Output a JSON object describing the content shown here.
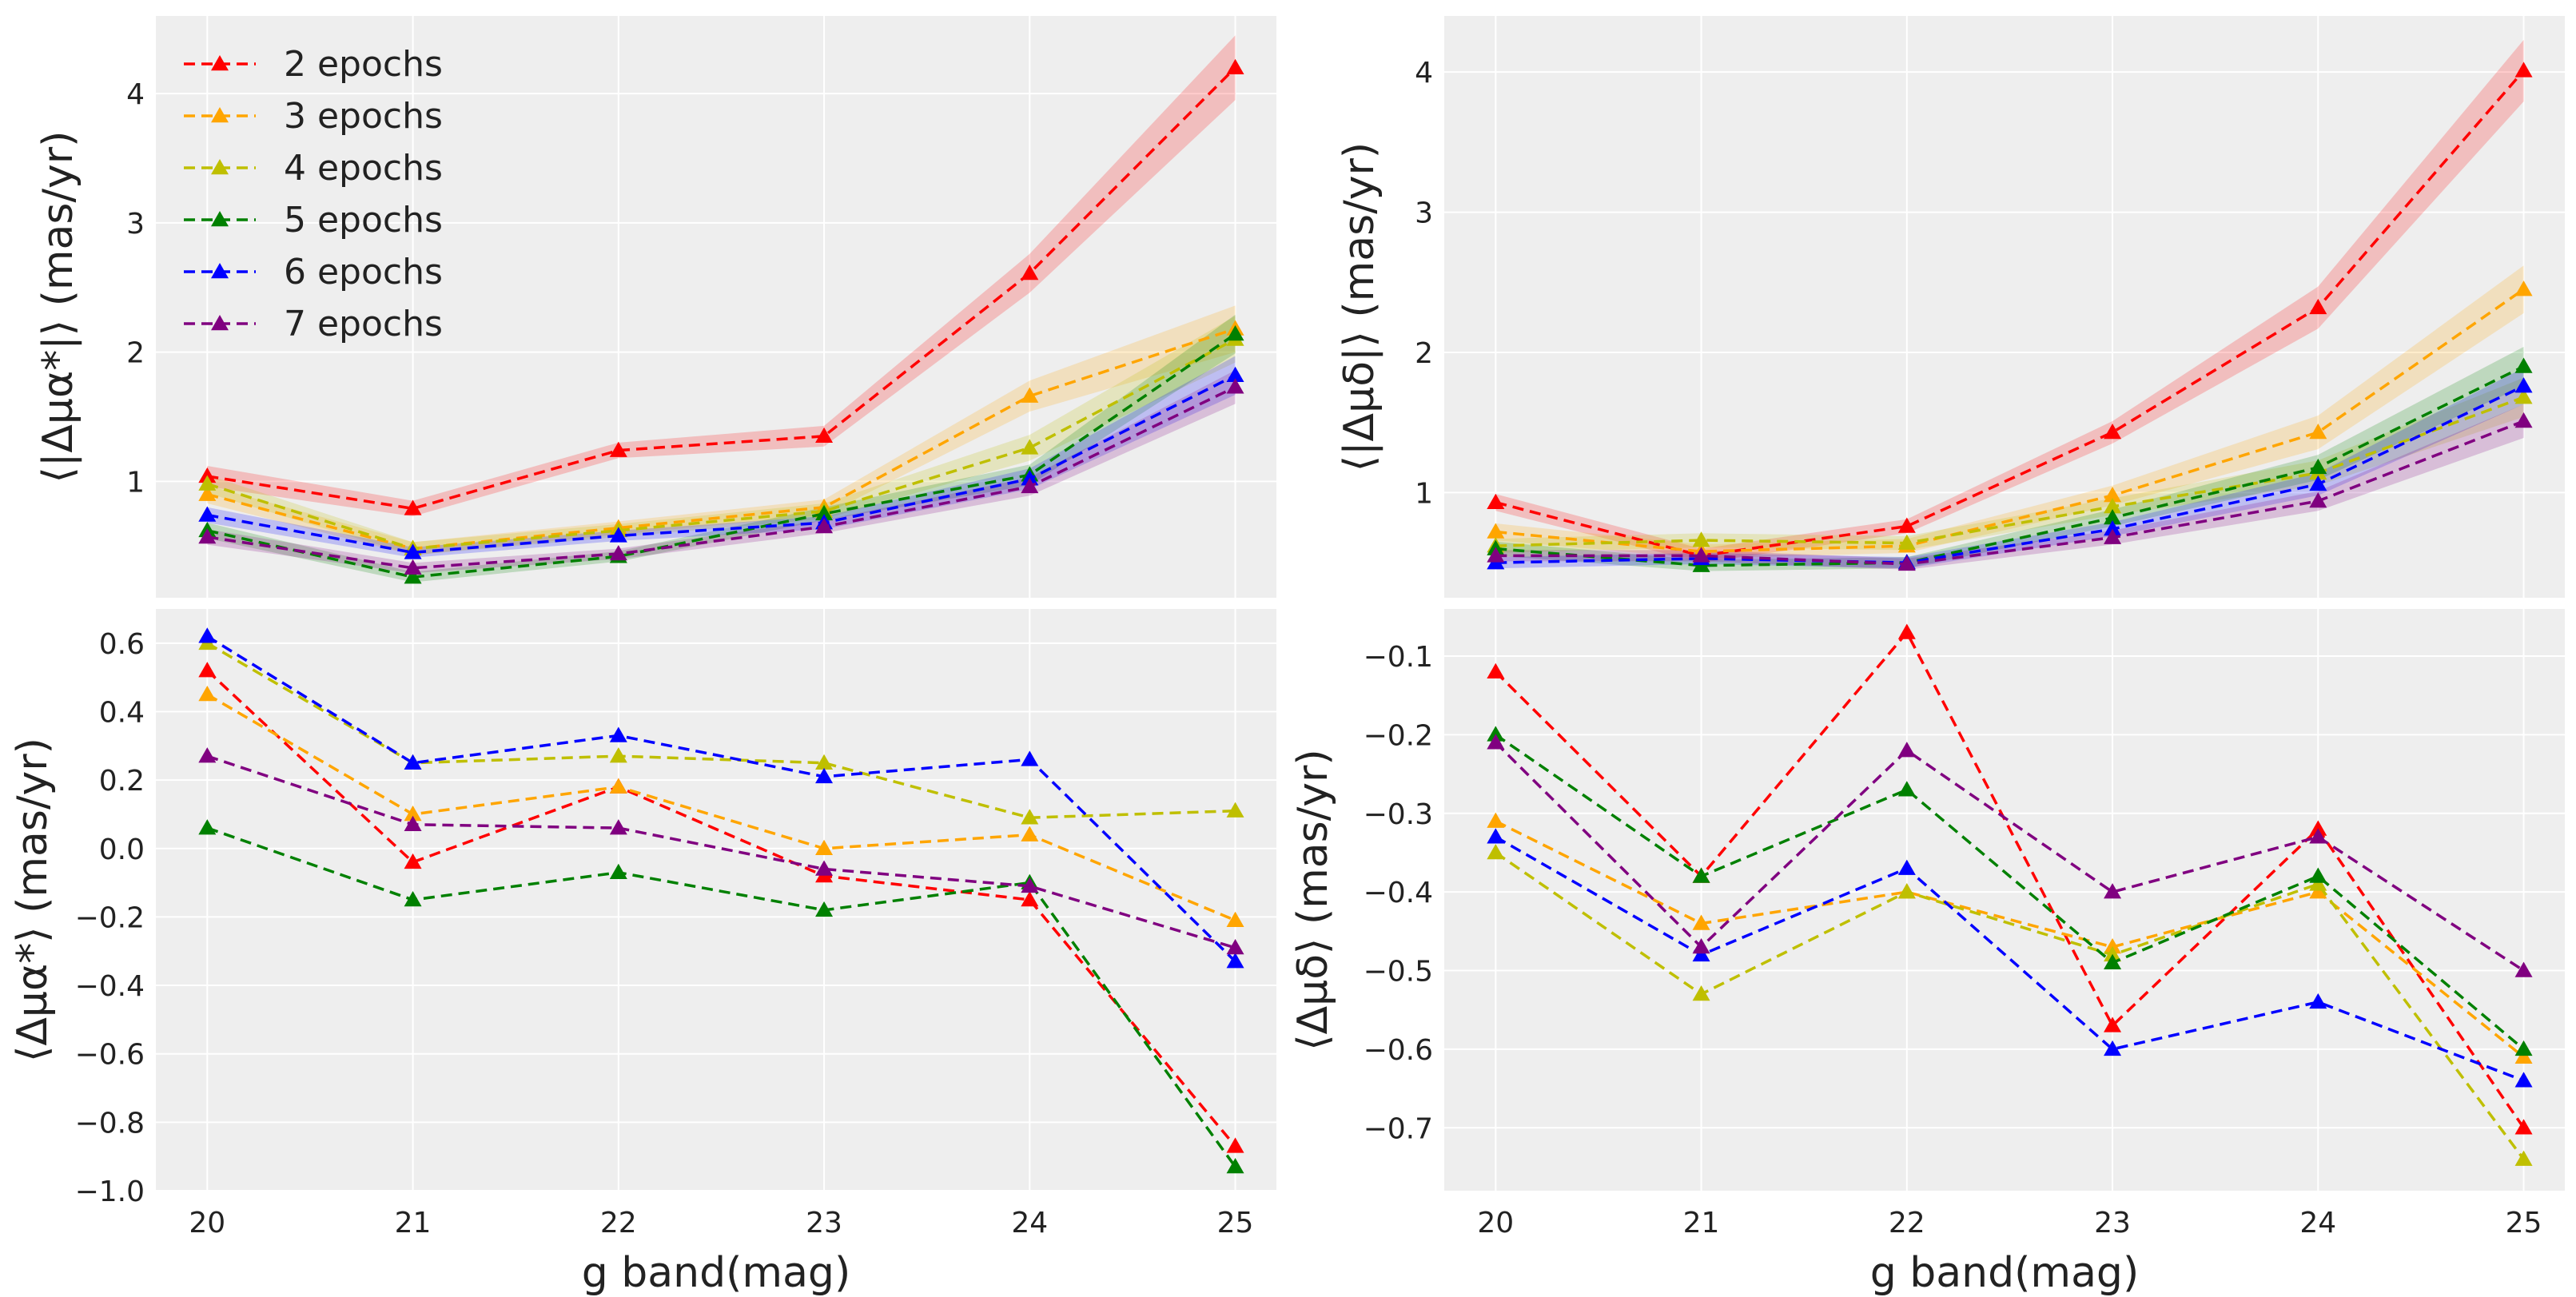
{
  "colors": {
    "background": "#eeeeee",
    "grid": "#ffffff"
  },
  "chart_data": [
    {
      "id": "tl",
      "type": "line",
      "panel": "top-left",
      "title": "",
      "ylabel": "⟨|Δμα*|⟩ (mas/yr)",
      "xlabel": "",
      "x": [
        20,
        21,
        22,
        23,
        24,
        25
      ],
      "xlim": [
        19.75,
        25.2
      ],
      "ylim": [
        0.1,
        4.6
      ],
      "yticks": [
        1,
        2,
        3,
        4
      ],
      "show_xticklabels": false,
      "bands": true,
      "legend": {
        "position": "top-left"
      },
      "series": [
        {
          "name": "2 epochs",
          "color": "#ff0000",
          "values": [
            1.04,
            0.79,
            1.24,
            1.35,
            2.61,
            4.2
          ],
          "err": [
            0.08,
            0.06,
            0.06,
            0.08,
            0.15,
            0.25
          ]
        },
        {
          "name": "3 epochs",
          "color": "#ffa500",
          "values": [
            0.9,
            0.48,
            0.64,
            0.8,
            1.66,
            2.18
          ],
          "err": [
            0.07,
            0.05,
            0.05,
            0.06,
            0.12,
            0.18
          ]
        },
        {
          "name": "4 epochs",
          "color": "#bfbf00",
          "values": [
            0.98,
            0.48,
            0.62,
            0.77,
            1.26,
            2.1
          ],
          "err": [
            0.07,
            0.05,
            0.05,
            0.06,
            0.1,
            0.18
          ]
        },
        {
          "name": "5 epochs",
          "color": "#008000",
          "values": [
            0.62,
            0.26,
            0.42,
            0.75,
            1.05,
            2.14
          ],
          "err": [
            0.06,
            0.04,
            0.04,
            0.05,
            0.08,
            0.15
          ]
        },
        {
          "name": "6 epochs",
          "color": "#0000ff",
          "values": [
            0.74,
            0.45,
            0.58,
            0.68,
            1.02,
            1.82
          ],
          "err": [
            0.06,
            0.04,
            0.04,
            0.05,
            0.08,
            0.15
          ]
        },
        {
          "name": "7 epochs",
          "color": "#800080",
          "values": [
            0.57,
            0.33,
            0.44,
            0.65,
            0.96,
            1.73
          ],
          "err": [
            0.06,
            0.04,
            0.04,
            0.05,
            0.07,
            0.13
          ]
        }
      ]
    },
    {
      "id": "tr",
      "type": "line",
      "panel": "top-right",
      "title": "",
      "ylabel": "⟨|Δμδ|⟩ (mas/yr)",
      "xlabel": "",
      "x": [
        20,
        21,
        22,
        23,
        24,
        25
      ],
      "xlim": [
        19.75,
        25.2
      ],
      "ylim": [
        0.25,
        4.4
      ],
      "yticks": [
        1,
        2,
        3,
        4
      ],
      "show_xticklabels": false,
      "bands": true,
      "series": [
        {
          "name": "2 epochs",
          "color": "#ff0000",
          "values": [
            0.93,
            0.55,
            0.76,
            1.43,
            2.32,
            4.01
          ],
          "err": [
            0.06,
            0.05,
            0.05,
            0.08,
            0.15,
            0.22
          ]
        },
        {
          "name": "3 epochs",
          "color": "#ffa500",
          "values": [
            0.72,
            0.58,
            0.62,
            0.98,
            1.43,
            2.45
          ],
          "err": [
            0.06,
            0.05,
            0.05,
            0.07,
            0.12,
            0.17
          ]
        },
        {
          "name": "4 epochs",
          "color": "#bfbf00",
          "values": [
            0.62,
            0.66,
            0.64,
            0.9,
            1.14,
            1.68
          ],
          "err": [
            0.05,
            0.05,
            0.05,
            0.06,
            0.09,
            0.14
          ]
        },
        {
          "name": "5 epochs",
          "color": "#008000",
          "values": [
            0.6,
            0.48,
            0.5,
            0.82,
            1.18,
            1.9
          ],
          "err": [
            0.05,
            0.04,
            0.04,
            0.06,
            0.09,
            0.14
          ]
        },
        {
          "name": "6 epochs",
          "color": "#0000ff",
          "values": [
            0.5,
            0.53,
            0.5,
            0.74,
            1.06,
            1.76
          ],
          "err": [
            0.04,
            0.04,
            0.04,
            0.05,
            0.08,
            0.13
          ]
        },
        {
          "name": "7 epochs",
          "color": "#800080",
          "values": [
            0.55,
            0.55,
            0.49,
            0.68,
            0.94,
            1.51
          ],
          "err": [
            0.04,
            0.04,
            0.04,
            0.05,
            0.07,
            0.12
          ]
        }
      ]
    },
    {
      "id": "bl",
      "type": "line",
      "panel": "bottom-left",
      "title": "",
      "ylabel": "⟨Δμα*⟩ (mas/yr)",
      "xlabel": "g band(mag)",
      "x": [
        20,
        21,
        22,
        23,
        24,
        25
      ],
      "xlim": [
        19.75,
        25.2
      ],
      "ylim": [
        -1.0,
        0.7
      ],
      "yticks": [
        -1.0,
        -0.8,
        -0.6,
        -0.4,
        -0.2,
        0.0,
        0.2,
        0.4,
        0.6
      ],
      "ytick_labels": [
        "−1.0",
        "−0.8",
        "−0.6",
        "−0.4",
        "−0.2",
        "0.0",
        "0.2",
        "0.4",
        "0.6"
      ],
      "xticks": [
        20,
        21,
        22,
        23,
        24,
        25
      ],
      "xtick_labels": [
        "20",
        "21",
        "22",
        "23",
        "24",
        "25"
      ],
      "show_xticklabels": true,
      "bands": false,
      "series": [
        {
          "name": "2 epochs",
          "color": "#ff0000",
          "values": [
            0.52,
            -0.04,
            0.18,
            -0.08,
            -0.15,
            -0.87
          ]
        },
        {
          "name": "3 epochs",
          "color": "#ffa500",
          "values": [
            0.45,
            0.1,
            0.18,
            0.0,
            0.04,
            -0.21
          ]
        },
        {
          "name": "4 epochs",
          "color": "#bfbf00",
          "values": [
            0.6,
            0.25,
            0.27,
            0.25,
            0.09,
            0.11
          ]
        },
        {
          "name": "5 epochs",
          "color": "#008000",
          "values": [
            0.06,
            -0.15,
            -0.07,
            -0.18,
            -0.1,
            -0.93
          ]
        },
        {
          "name": "6 epochs",
          "color": "#0000ff",
          "values": [
            0.62,
            0.25,
            0.33,
            0.21,
            0.26,
            -0.33
          ]
        },
        {
          "name": "7 epochs",
          "color": "#800080",
          "values": [
            0.27,
            0.07,
            0.06,
            -0.06,
            -0.11,
            -0.29
          ]
        }
      ]
    },
    {
      "id": "br",
      "type": "line",
      "panel": "bottom-right",
      "title": "",
      "ylabel": "⟨Δμδ⟩ (mas/yr)",
      "xlabel": "g band(mag)",
      "x": [
        20,
        21,
        22,
        23,
        24,
        25
      ],
      "xlim": [
        19.75,
        25.2
      ],
      "ylim": [
        -0.78,
        -0.04
      ],
      "yticks": [
        -0.7,
        -0.6,
        -0.5,
        -0.4,
        -0.3,
        -0.2,
        -0.1
      ],
      "ytick_labels": [
        "−0.7",
        "−0.6",
        "−0.5",
        "−0.4",
        "−0.3",
        "−0.2",
        "−0.1"
      ],
      "xticks": [
        20,
        21,
        22,
        23,
        24,
        25
      ],
      "xtick_labels": [
        "20",
        "21",
        "22",
        "23",
        "24",
        "25"
      ],
      "show_xticklabels": true,
      "bands": false,
      "series": [
        {
          "name": "2 epochs",
          "color": "#ff0000",
          "values": [
            -0.12,
            -0.38,
            -0.07,
            -0.57,
            -0.32,
            -0.7
          ]
        },
        {
          "name": "3 epochs",
          "color": "#ffa500",
          "values": [
            -0.31,
            -0.44,
            -0.4,
            -0.47,
            -0.4,
            -0.61
          ]
        },
        {
          "name": "4 epochs",
          "color": "#bfbf00",
          "values": [
            -0.35,
            -0.53,
            -0.4,
            -0.48,
            -0.39,
            -0.74
          ]
        },
        {
          "name": "5 epochs",
          "color": "#008000",
          "values": [
            -0.2,
            -0.38,
            -0.27,
            -0.49,
            -0.38,
            -0.6
          ]
        },
        {
          "name": "6 epochs",
          "color": "#0000ff",
          "values": [
            -0.33,
            -0.48,
            -0.37,
            -0.6,
            -0.54,
            -0.64
          ]
        },
        {
          "name": "7 epochs",
          "color": "#800080",
          "values": [
            -0.21,
            -0.47,
            -0.22,
            -0.4,
            -0.33,
            -0.5
          ]
        }
      ]
    }
  ]
}
